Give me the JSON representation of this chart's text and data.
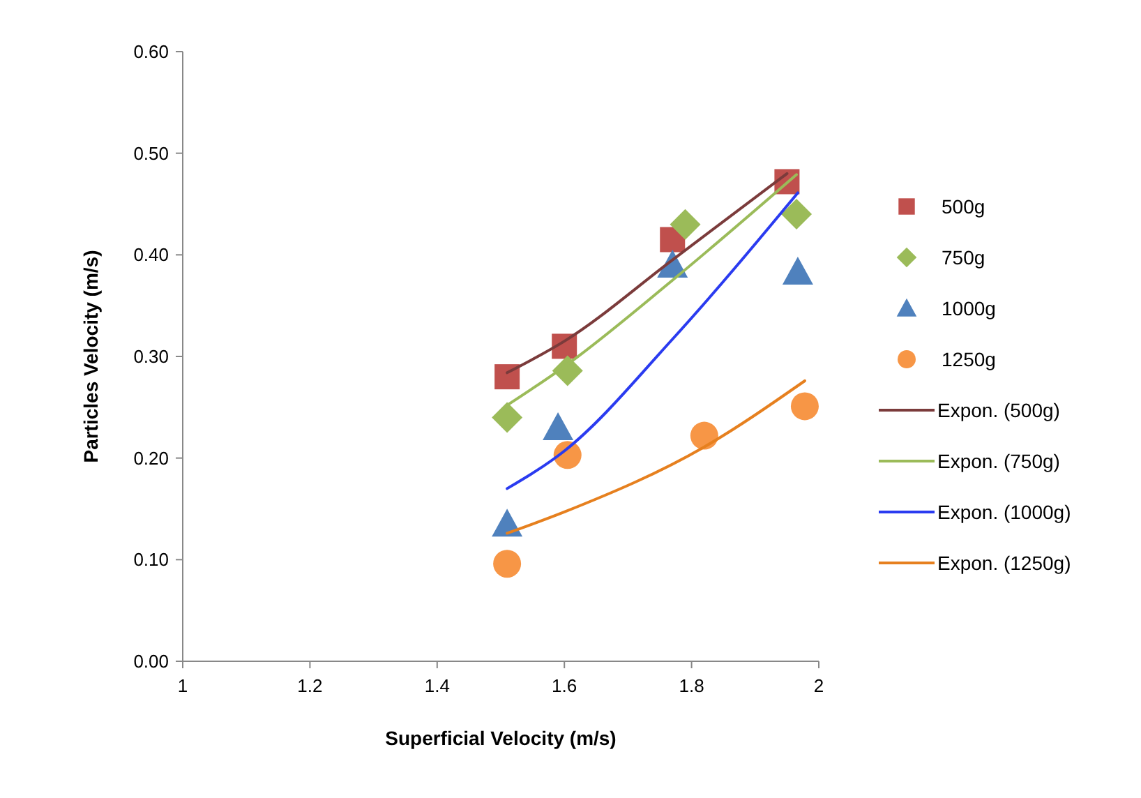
{
  "chart_data": {
    "type": "scatter",
    "xlabel": "Superficial Velocity (m/s)",
    "ylabel": "Particles Velocity (m/s)",
    "xlim": [
      1,
      2
    ],
    "xticks": [
      1,
      1.2,
      1.4,
      1.6,
      1.8,
      2
    ],
    "ylim": [
      0,
      0.6
    ],
    "yticks": [
      {
        "value": 0,
        "label": "0.00"
      },
      {
        "value": 0.1,
        "label": "0.10"
      },
      {
        "value": 0.2,
        "label": "0.20"
      },
      {
        "value": 0.3,
        "label": "0.30"
      },
      {
        "value": 0.4,
        "label": "0.40"
      },
      {
        "value": 0.5,
        "label": "0.50"
      },
      {
        "value": 0.6,
        "label": "0.60"
      }
    ],
    "legend": "right",
    "grid": false,
    "series": [
      {
        "name": "500g",
        "color": "#c0504d",
        "marker": "square",
        "x": [
          1.51,
          1.6,
          1.77,
          1.95
        ],
        "values": [
          0.28,
          0.31,
          0.415,
          0.472
        ]
      },
      {
        "name": "750g",
        "color": "#9bbb59",
        "marker": "diamond",
        "x": [
          1.51,
          1.605,
          1.79,
          1.965
        ],
        "values": [
          0.24,
          0.286,
          0.43,
          0.44
        ]
      },
      {
        "name": "1000g",
        "color": "#4f81bd",
        "marker": "triangle",
        "x": [
          1.51,
          1.59,
          1.77,
          1.967
        ],
        "values": [
          0.135,
          0.23,
          0.39,
          0.383
        ]
      },
      {
        "name": "1250g",
        "color": "#f79646",
        "marker": "circle",
        "x": [
          1.51,
          1.605,
          1.82,
          1.978
        ],
        "values": [
          0.096,
          0.203,
          0.222,
          0.251
        ]
      },
      {
        "name": "Expon. (500g)",
        "type": "line",
        "color": "#7b3b3b",
        "x": [
          1.51,
          1.6,
          1.77,
          1.95
        ],
        "values": [
          0.284,
          0.315,
          0.395,
          0.48
        ]
      },
      {
        "name": "Expon. (750g)",
        "type": "line",
        "color": "#9bbb59",
        "x": [
          1.51,
          1.6,
          1.77,
          1.965
        ],
        "values": [
          0.252,
          0.29,
          0.375,
          0.479
        ]
      },
      {
        "name": "Expon. (1000g)",
        "type": "line",
        "color": "#2a3bf0",
        "x": [
          1.51,
          1.6,
          1.77,
          1.967
        ],
        "values": [
          0.17,
          0.207,
          0.317,
          0.461
        ]
      },
      {
        "name": "Expon. (1250g)",
        "type": "line",
        "color": "#e6801f",
        "x": [
          1.51,
          1.6,
          1.82,
          1.978
        ],
        "values": [
          0.126,
          0.147,
          0.211,
          0.276
        ]
      }
    ]
  }
}
